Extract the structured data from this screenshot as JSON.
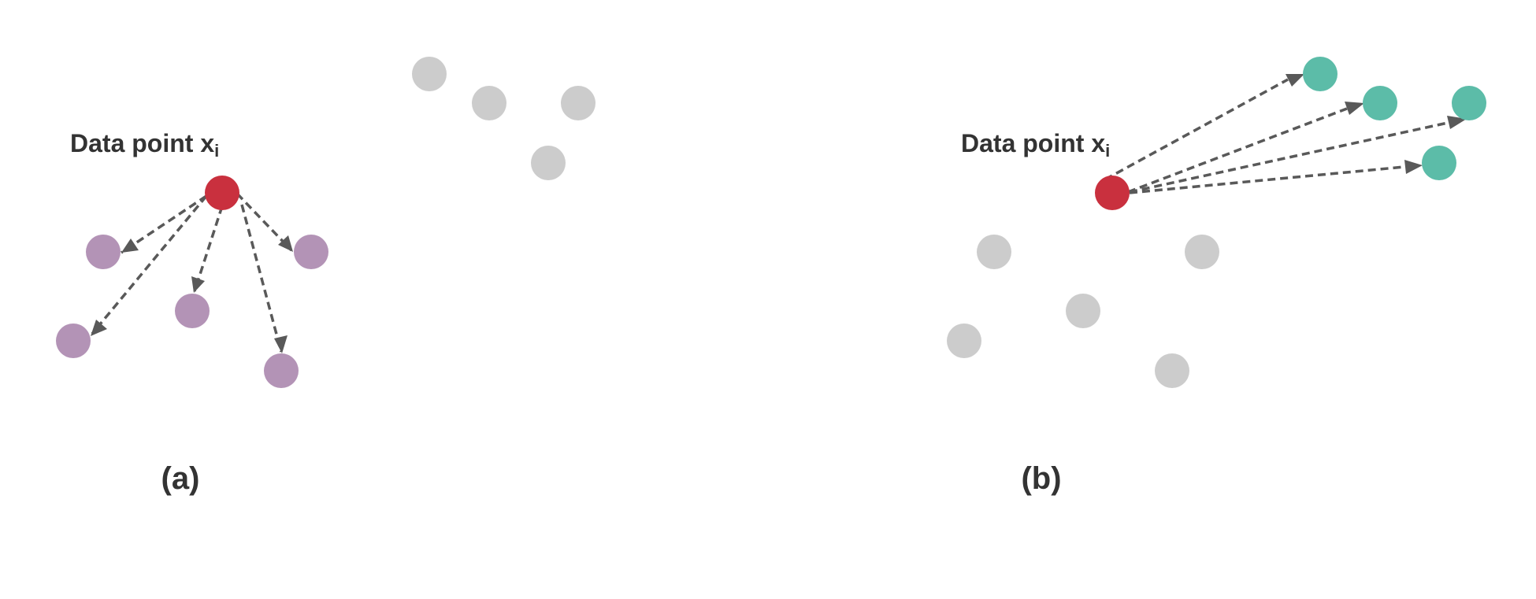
{
  "colors": {
    "anchor": "#c9303e",
    "positive_a": "#b393b6",
    "positive_b": "#5cbca8",
    "background_point": "#cccccc",
    "arrow": "#595959",
    "text": "#333333"
  },
  "panel_a": {
    "point_label": "Data point x",
    "point_label_sub": "i",
    "caption": "(a)"
  },
  "panel_b": {
    "point_label": "Data point x",
    "point_label_sub": "i",
    "caption": "(b)"
  }
}
